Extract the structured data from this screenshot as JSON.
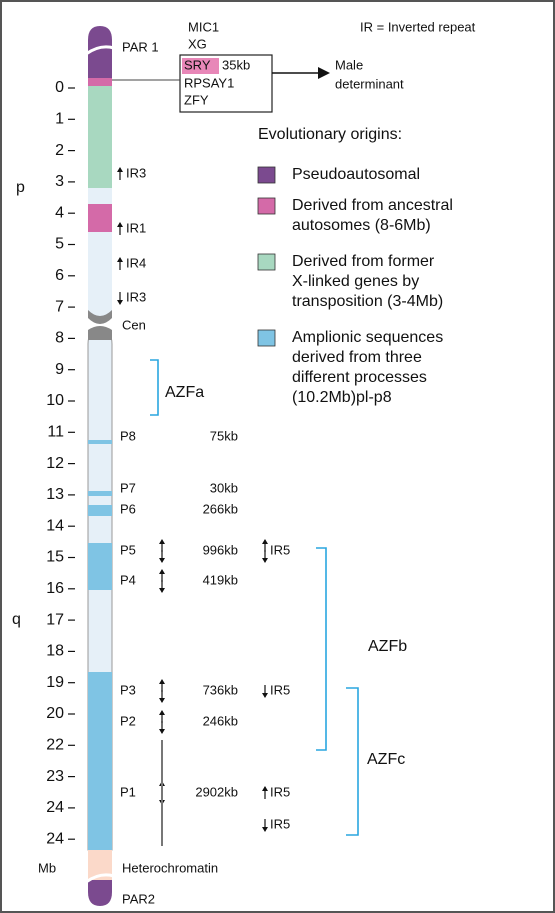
{
  "note": "IR = Inverted repeat",
  "arms": {
    "p": "p",
    "q": "q"
  },
  "scale": {
    "labels": [
      "0",
      "1",
      "2",
      "3",
      "4",
      "5",
      "6",
      "7",
      "8",
      "9",
      "10",
      "11",
      "12",
      "13",
      "14",
      "15",
      "16",
      "17",
      "18",
      "19",
      "20",
      "22",
      "23",
      "24",
      "24"
    ],
    "unit": "Mb"
  },
  "regions": {
    "par1": "PAR 1",
    "cen": "Cen",
    "heterochromatin": "Heterochromatin",
    "par2": "PAR2"
  },
  "genes": {
    "mic1": "MIC1",
    "xg": "XG",
    "sry": "SRY",
    "sry_size": "35kb",
    "rpsay1": "RPSAY1",
    "zfy": "ZFY"
  },
  "male_determinant": [
    "Male",
    "determinant"
  ],
  "p_arm_repeats": [
    "IR3",
    "IR1",
    "IR4",
    "IR3"
  ],
  "legend": {
    "title": "Evolutionary origins:",
    "items": [
      {
        "lines": [
          "Pseudoautosomal"
        ]
      },
      {
        "lines": [
          "Derived from ancestral",
          "autosomes (8-6Mb)"
        ]
      },
      {
        "lines": [
          "Derived from former",
          "X-linked genes by",
          "transposition (3-4Mb)"
        ]
      },
      {
        "lines": [
          "Amplionic sequences",
          "derived from three",
          "different processes",
          "(10.2Mb)pl-p8"
        ]
      }
    ]
  },
  "palindromes": [
    {
      "name": "P8",
      "size": "75kb"
    },
    {
      "name": "P7",
      "size": "30kb"
    },
    {
      "name": "P6",
      "size": "266kb"
    },
    {
      "name": "P5",
      "size": "996kb",
      "repeat": "IR5"
    },
    {
      "name": "P4",
      "size": "419kb"
    },
    {
      "name": "P3",
      "size": "736kb",
      "repeat": "IR5"
    },
    {
      "name": "P2",
      "size": "246kb"
    },
    {
      "name": "P1",
      "size": "2902kb",
      "repeat": "IR5"
    }
  ],
  "extra_repeat": "IR5",
  "azf": {
    "a": "AZFa",
    "b": "AZFb",
    "c": "AZFc"
  }
}
